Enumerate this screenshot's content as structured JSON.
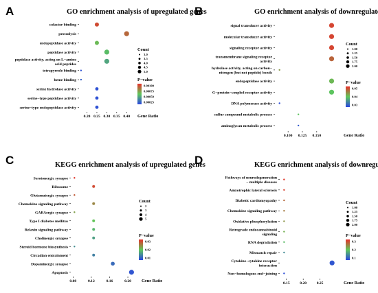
{
  "chart_data": [
    {
      "panel": "A",
      "type": "scatter",
      "title": "GO enrichment analysis of upregulated genes",
      "xlabel": "Gene Ratio",
      "xlim": [
        0.16,
        0.42
      ],
      "xticks": [
        "0.20",
        "0.25",
        "0.30",
        "0.35",
        "0.40"
      ],
      "size_legend_title": "Count",
      "size_legend_values": [
        "3.0",
        "3.5",
        "4.0",
        "4.5",
        "5.0"
      ],
      "size_range": [
        3,
        5
      ],
      "color_legend_title": "P−value",
      "color_legend_values": [
        "0.00100",
        "0.00075",
        "0.00050",
        "0.00025"
      ],
      "color_range": [
        0.0,
        0.0011
      ],
      "categories": [
        "cofactor binding",
        "proteolysis",
        "endopeptidase activity",
        "peptidase activity",
        "peptidase activity, acting on L−amino\nacid peptides",
        "tetrapyrrole binding",
        "heme binding",
        "serine hydrolase activity",
        "serine−type peptidase activity",
        "serine−type endopeptidase activity"
      ],
      "gene_ratio": [
        0.25,
        0.4,
        0.25,
        0.3,
        0.3,
        0.17,
        0.17,
        0.25,
        0.25,
        0.25
      ],
      "count": [
        4.5,
        5,
        4.5,
        5,
        5,
        3,
        3,
        4,
        4,
        4
      ],
      "pvalue": [
        0.001,
        0.0009,
        0.0006,
        0.0005,
        0.0004,
        5e-05,
        0.0001,
        5e-05,
        5e-05,
        5e-05
      ]
    },
    {
      "panel": "B",
      "type": "scatter",
      "title": "GO enrichment analysis of downregulated genes",
      "xlabel": "Gene Ratio",
      "xlim": [
        0.077,
        0.185
      ],
      "xticks": [
        "0.100",
        "0.125",
        "0.150"
      ],
      "size_legend_title": "Count",
      "size_legend_values": [
        "1.00",
        "1.25",
        "1.50",
        "1.75",
        "2.00"
      ],
      "size_range": [
        1,
        2
      ],
      "color_legend_title": "P−value",
      "color_legend_values": [
        "0.05",
        "0.04",
        "0.03"
      ],
      "color_range": [
        0.026,
        0.055
      ],
      "categories": [
        "signal transducer activity",
        "molecular transducer activity",
        "signaling receptor activity",
        "transmembrane signaling receptor\nactivity",
        "hydrolase activity, acting on carbon−\nnitrogen (but not peptide) bonds",
        "endopeptidase activity",
        "G−protein−coupled receptor activity",
        "DNA polymerase activity",
        "sulfur compound metabolic process",
        "aminoglycan metabolic process"
      ],
      "gene_ratio": [
        0.176,
        0.176,
        0.176,
        0.176,
        0.085,
        0.176,
        0.176,
        0.085,
        0.118,
        0.118
      ],
      "count": [
        2,
        2,
        2,
        2,
        1,
        2,
        2,
        1,
        1,
        1
      ],
      "pvalue": [
        0.053,
        0.053,
        0.053,
        0.05,
        0.045,
        0.042,
        0.04,
        0.027,
        0.04,
        0.028
      ]
    },
    {
      "panel": "C",
      "type": "scatter",
      "title": "KEGG enrichment analysis of upregulated genes",
      "xlabel": "Gene Ratio",
      "xlim": [
        0.075,
        0.215
      ],
      "xticks": [
        "0.08",
        "0.12",
        "0.16",
        "0.20"
      ],
      "size_legend_title": "Count",
      "size_legend_values": [
        "2",
        "3",
        "4",
        "5"
      ],
      "size_range": [
        2,
        5
      ],
      "color_legend_title": "P−value",
      "color_legend_values": [
        "0.03",
        "0.02",
        "0.01"
      ],
      "color_range": [
        0.0,
        0.035
      ],
      "categories": [
        "Serotonergic synapse",
        "Ribosome",
        "Glutamatergic synapse",
        "Chemokine signaling pathway",
        "GABAergic synapse",
        "Type I diabetes mellitus",
        "Relaxin signaling pathway",
        "Cholinergic synapse",
        "Steroid hormone biosynthesis",
        "Circadian entrainment",
        "Dopaminergic synapse",
        "Apoptosis"
      ],
      "gene_ratio": [
        0.083,
        0.125,
        0.083,
        0.125,
        0.083,
        0.125,
        0.125,
        0.125,
        0.083,
        0.125,
        0.167,
        0.208
      ],
      "count": [
        2,
        3,
        2,
        3,
        2,
        3,
        3,
        3,
        2,
        3,
        4,
        5
      ],
      "pvalue": [
        0.034,
        0.032,
        0.03,
        0.025,
        0.022,
        0.018,
        0.015,
        0.012,
        0.01,
        0.008,
        0.005,
        0.002
      ]
    },
    {
      "panel": "D",
      "type": "scatter",
      "title": "KEGG enrichment analysis of downregulated genes",
      "xlabel": "Gene Ratio",
      "xlim": [
        0.13,
        0.3
      ],
      "xticks": [
        "0.15",
        "0.20",
        "0.25"
      ],
      "size_legend_title": "Count",
      "size_legend_values": [
        "1.00",
        "1.25",
        "1.50",
        "1.75",
        "2.00"
      ],
      "size_range": [
        1,
        2
      ],
      "color_legend_title": "P−value",
      "color_legend_values": [
        "0.3",
        "0.2",
        "0.1"
      ],
      "color_range": [
        0.03,
        0.36
      ],
      "categories": [
        "Pathways of neurodegeneration\n− multiple diseases",
        "Amyotrophic lateral sclerosis",
        "Diabetic cardiomyopathy",
        "Chemokine signaling pathway",
        "Oxidative phosphorylation",
        "Retrograde endocannabinoid\nsignaling",
        "RNA degradation",
        "Mismatch repair",
        "Cytokine−cytokine receptor\ninteraction",
        "Non−homologous end−joining"
      ],
      "gene_ratio": [
        0.143,
        0.143,
        0.143,
        0.143,
        0.143,
        0.143,
        0.143,
        0.143,
        0.286,
        0.143
      ],
      "count": [
        1,
        1,
        1,
        1,
        1,
        1,
        1,
        1,
        2,
        1
      ],
      "pvalue": [
        0.35,
        0.34,
        0.3,
        0.28,
        0.25,
        0.22,
        0.18,
        0.12,
        0.05,
        0.04
      ]
    }
  ]
}
